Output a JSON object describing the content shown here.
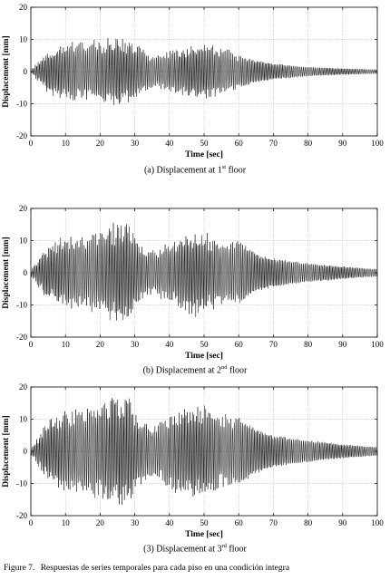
{
  "figure": {
    "label": "Figure 7.",
    "text": "Respuestas de series temporales para cada piso en una condición integra"
  },
  "chart_data": [
    {
      "type": "line",
      "caption": {
        "prefix": "(a) Displacement at 1",
        "sup": "st",
        "suffix": " floor"
      },
      "xlabel": "Time [sec]",
      "ylabel": "Displacement [mm]",
      "xlim": [
        0,
        100
      ],
      "ylim": [
        -20,
        20
      ],
      "xticks": [
        0,
        10,
        20,
        30,
        40,
        50,
        60,
        70,
        80,
        90,
        100
      ],
      "yticks": [
        -20,
        -10,
        0,
        10,
        20
      ],
      "grid": true,
      "series": [
        {
          "color": "#000000",
          "envelope": [
            [
              0,
              0.5
            ],
            [
              5,
              7
            ],
            [
              10,
              9.5
            ],
            [
              20,
              10
            ],
            [
              25,
              11
            ],
            [
              30,
              9
            ],
            [
              35,
              5
            ],
            [
              40,
              7
            ],
            [
              45,
              8
            ],
            [
              50,
              9.5
            ],
            [
              55,
              8
            ],
            [
              58,
              7
            ],
            [
              60,
              5
            ],
            [
              65,
              3.5
            ],
            [
              70,
              2.5
            ],
            [
              80,
              1.5
            ],
            [
              90,
              1.0
            ],
            [
              100,
              0.7
            ]
          ]
        }
      ]
    },
    {
      "type": "line",
      "caption": {
        "prefix": "(b) Displacement at 2",
        "sup": "nd",
        "suffix": " floor"
      },
      "xlabel": "Time [sec]",
      "ylabel": "Displacement [mm]",
      "xlim": [
        0,
        100
      ],
      "ylim": [
        -20,
        20
      ],
      "xticks": [
        0,
        10,
        20,
        30,
        40,
        50,
        60,
        70,
        80,
        90,
        100
      ],
      "yticks": [
        -20,
        -10,
        0,
        10,
        20
      ],
      "grid": true,
      "series": [
        {
          "color": "#000000",
          "envelope": [
            [
              0,
              1
            ],
            [
              5,
              9
            ],
            [
              10,
              12
            ],
            [
              20,
              13
            ],
            [
              25,
              17
            ],
            [
              28,
              16
            ],
            [
              32,
              9
            ],
            [
              35,
              7
            ],
            [
              40,
              10
            ],
            [
              45,
              13
            ],
            [
              48,
              14
            ],
            [
              52,
              12
            ],
            [
              55,
              11
            ],
            [
              60,
              10
            ],
            [
              65,
              6
            ],
            [
              70,
              4.5
            ],
            [
              80,
              3
            ],
            [
              90,
              2
            ],
            [
              100,
              1.2
            ]
          ]
        }
      ]
    },
    {
      "type": "line",
      "caption": {
        "prefix": "(3) Displacement at 3",
        "sup": "rd",
        "suffix": " floor"
      },
      "xlabel": "Time [sec]",
      "ylabel": "Displacement [mm]",
      "xlim": [
        0,
        100
      ],
      "ylim": [
        -20,
        20
      ],
      "xticks": [
        0,
        10,
        20,
        30,
        40,
        50,
        60,
        70,
        80,
        90,
        100
      ],
      "yticks": [
        -20,
        -10,
        0,
        10,
        20
      ],
      "grid": true,
      "series": [
        {
          "color": "#000000",
          "envelope": [
            [
              0,
              1
            ],
            [
              5,
              10
            ],
            [
              10,
              13
            ],
            [
              20,
              16
            ],
            [
              25,
              19
            ],
            [
              28,
              18
            ],
            [
              32,
              10
            ],
            [
              35,
              8
            ],
            [
              40,
              12
            ],
            [
              45,
              15
            ],
            [
              48,
              16
            ],
            [
              52,
              14
            ],
            [
              55,
              12
            ],
            [
              60,
              11
            ],
            [
              65,
              7
            ],
            [
              70,
              5
            ],
            [
              80,
              3.5
            ],
            [
              90,
              2.2
            ],
            [
              100,
              1.4
            ]
          ]
        }
      ]
    }
  ]
}
